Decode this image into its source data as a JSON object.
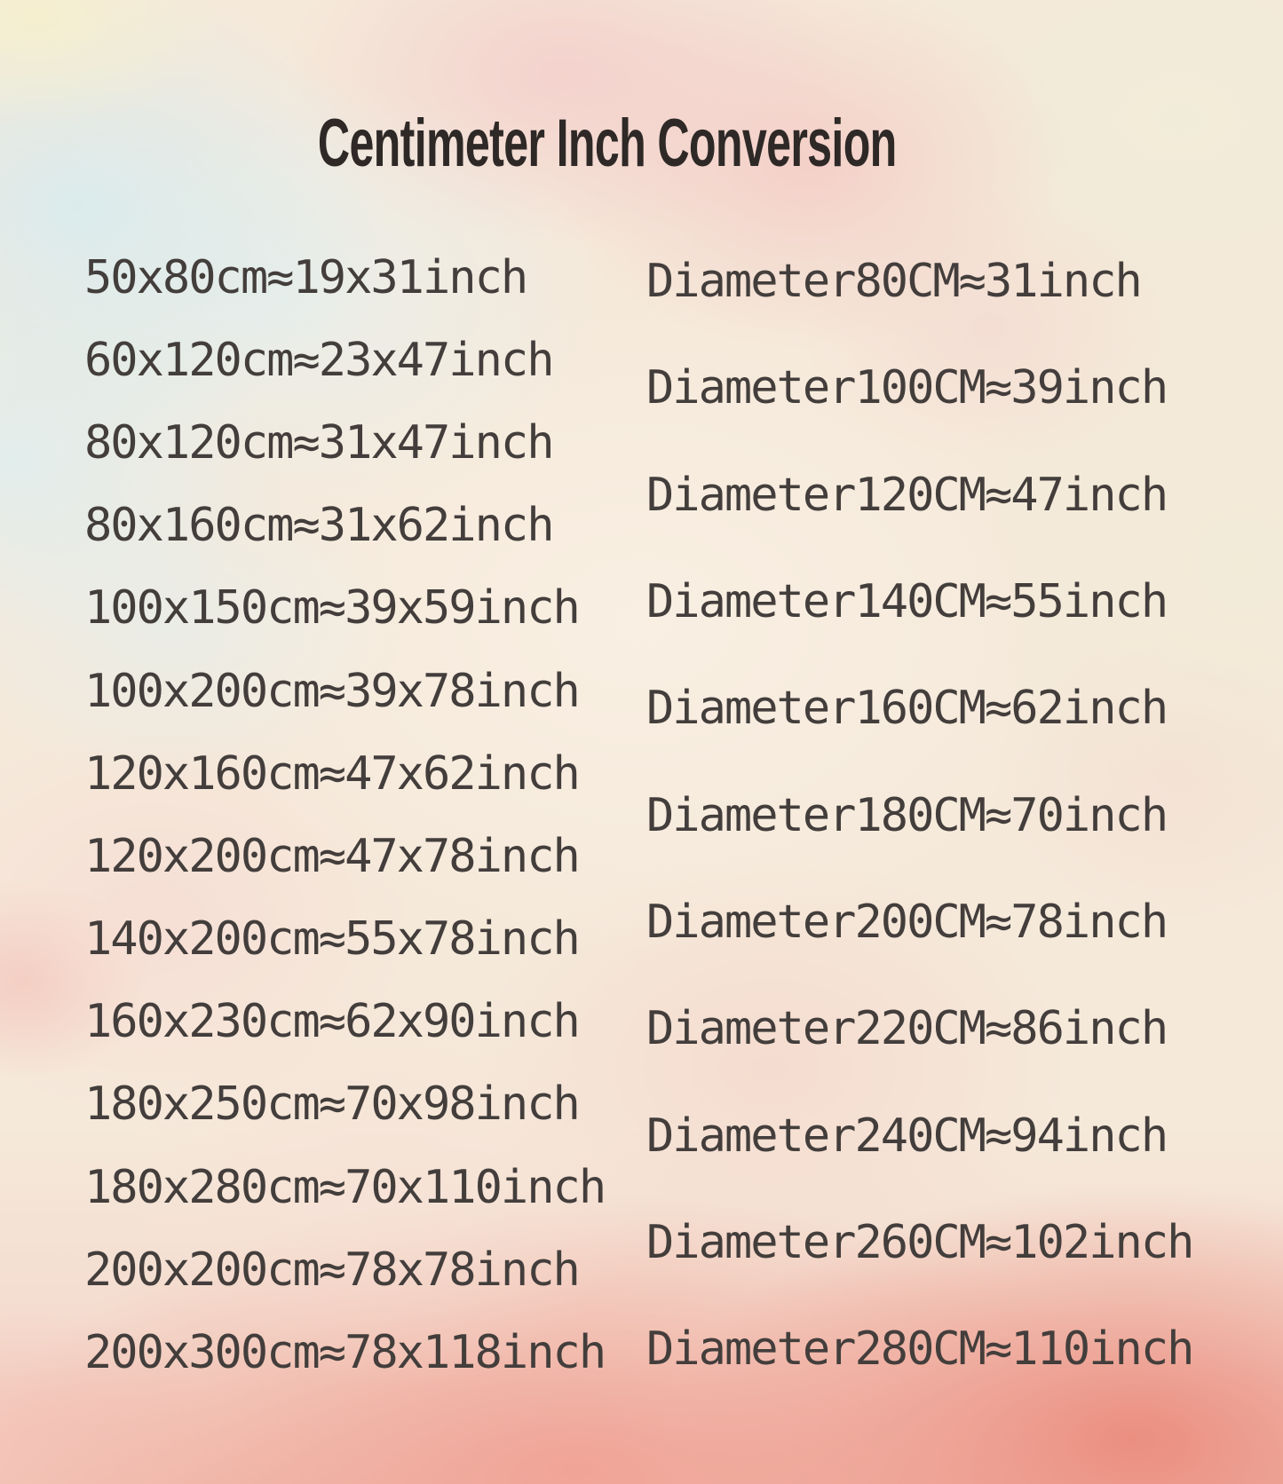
{
  "title": "Centimeter Inch Conversion",
  "colors": {
    "text": "#433e3c",
    "title_text": "#2e2927",
    "background_palette": [
      "#f5e9da",
      "#dceef2",
      "#f5d2cf",
      "#f1ecd9",
      "#f6efd2",
      "#efa396",
      "#ea8a7c"
    ]
  },
  "rect_conversions": {
    "rows": [
      {
        "cm": "50x80",
        "inch": "19x31",
        "label": "50x80cm≈19x31inch"
      },
      {
        "cm": "60x120",
        "inch": "23x47",
        "label": "60x120cm≈23x47inch"
      },
      {
        "cm": "80x120",
        "inch": "31x47",
        "label": "80x120cm≈31x47inch"
      },
      {
        "cm": "80x160",
        "inch": "31x62",
        "label": "80x160cm≈31x62inch"
      },
      {
        "cm": "100x150",
        "inch": "39x59",
        "label": "100x150cm≈39x59inch"
      },
      {
        "cm": "100x200",
        "inch": "39x78",
        "label": "100x200cm≈39x78inch"
      },
      {
        "cm": "120x160",
        "inch": "47x62",
        "label": "120x160cm≈47x62inch"
      },
      {
        "cm": "120x200",
        "inch": "47x78",
        "label": "120x200cm≈47x78inch"
      },
      {
        "cm": "140x200",
        "inch": "55x78",
        "label": "140x200cm≈55x78inch"
      },
      {
        "cm": "160x230",
        "inch": "62x90",
        "label": "160x230cm≈62x90inch"
      },
      {
        "cm": "180x250",
        "inch": "70x98",
        "label": "180x250cm≈70x98inch"
      },
      {
        "cm": "180x280",
        "inch": "70x110",
        "label": "180x280cm≈70x110inch"
      },
      {
        "cm": "200x200",
        "inch": "78x78",
        "label": "200x200cm≈78x78inch"
      },
      {
        "cm": "200x300",
        "inch": "78x118",
        "label": "200x300cm≈78x118inch"
      }
    ]
  },
  "diameter_conversions": {
    "rows": [
      {
        "cm": "80",
        "inch": "31",
        "label": "Diameter80CM≈31inch"
      },
      {
        "cm": "100",
        "inch": "39",
        "label": "Diameter100CM≈39inch"
      },
      {
        "cm": "120",
        "inch": "47",
        "label": "Diameter120CM≈47inch"
      },
      {
        "cm": "140",
        "inch": "55",
        "label": "Diameter140CM≈55inch"
      },
      {
        "cm": "160",
        "inch": "62",
        "label": "Diameter160CM≈62inch"
      },
      {
        "cm": "180",
        "inch": "70",
        "label": "Diameter180CM≈70inch"
      },
      {
        "cm": "200",
        "inch": "78",
        "label": "Diameter200CM≈78inch"
      },
      {
        "cm": "220",
        "inch": "86",
        "label": "Diameter220CM≈86inch"
      },
      {
        "cm": "240",
        "inch": "94",
        "label": "Diameter240CM≈94inch"
      },
      {
        "cm": "260",
        "inch": "102",
        "label": "Diameter260CM≈102inch"
      },
      {
        "cm": "280",
        "inch": "110",
        "label": "Diameter280CM≈110inch"
      }
    ]
  }
}
